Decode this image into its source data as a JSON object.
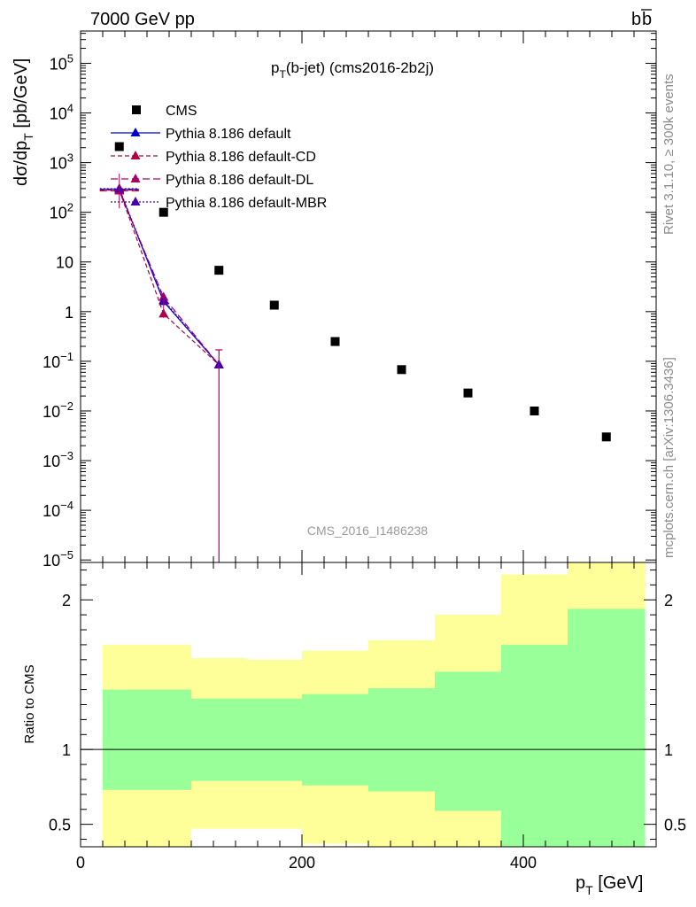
{
  "header": {
    "energy": "7000 GeV pp",
    "process_b": "b",
    "process_bbar": "b"
  },
  "side": {
    "rivet": "Rivet 3.1.10, ≥ 300k events",
    "arxiv": "mcplots.cern.ch [arXiv:1306.3436]"
  },
  "colors": {
    "cms": "#000000",
    "default": "#0000cc",
    "cd": "#b00044",
    "dl": "#aa0066",
    "mbr": "#4400aa",
    "band_inner": "#99ff99",
    "band_outer": "#ffff99"
  },
  "chart_data": [
    {
      "type": "scatter",
      "title": "p_T(b-jet) (cms2016-2b2j)",
      "title_main": "p",
      "title_sub": "T",
      "title_rest": "(b-jet) (cms2016-2b2j)",
      "watermark": "CMS_2016_I1486238",
      "ylabel": "dσ/dp_T [pb/GeV]",
      "ylabel_parts": {
        "a": "dσ/dp",
        "sub": "T",
        "b": " [pb/GeV]"
      },
      "yscale": "log",
      "ylim_log10": [
        -5.05,
        5.65
      ],
      "xlim": [
        0,
        520
      ],
      "y_ticks": [
        {
          "exp": 5,
          "base": "10",
          "sup": "5"
        },
        {
          "exp": 4,
          "base": "10",
          "sup": "4"
        },
        {
          "exp": 3,
          "base": "10",
          "sup": "3"
        },
        {
          "exp": 2,
          "base": "10",
          "sup": "2"
        },
        {
          "exp": 1,
          "base": "10",
          "sup": ""
        },
        {
          "exp": 0,
          "base": "1",
          "sup": ""
        },
        {
          "exp": -1,
          "base": "10",
          "sup": "−1"
        },
        {
          "exp": -2,
          "base": "10",
          "sup": "−2"
        },
        {
          "exp": -3,
          "base": "10",
          "sup": "−3"
        },
        {
          "exp": -4,
          "base": "10",
          "sup": "−4"
        },
        {
          "exp": -5,
          "base": "10",
          "sup": "−5"
        }
      ],
      "legend": [
        {
          "label": "CMS",
          "style": "square",
          "color_key": "cms",
          "dash": ""
        },
        {
          "label": "Pythia 8.186 default",
          "style": "line",
          "color_key": "default",
          "dash": ""
        },
        {
          "label": "Pythia 8.186 default-CD",
          "style": "line",
          "color_key": "cd",
          "dash": "5,3"
        },
        {
          "label": "Pythia 8.186 default-DL",
          "style": "line",
          "color_key": "dl",
          "dash": "8,4"
        },
        {
          "label": "Pythia 8.186 default-MBR",
          "style": "line",
          "color_key": "mbr",
          "dash": "2,2"
        }
      ],
      "cms": {
        "x": [
          35,
          75,
          125,
          175,
          230,
          290,
          350,
          410,
          475
        ],
        "y": [
          2100,
          100,
          6.8,
          1.35,
          0.25,
          0.068,
          0.023,
          0.01,
          0.003
        ]
      },
      "series": [
        {
          "name": "Pythia 8.186 default",
          "color_key": "default",
          "dash": "",
          "x": [
            35,
            75,
            125
          ],
          "y": [
            290,
            1.6,
            0.085
          ]
        },
        {
          "name": "Pythia 8.186 default-CD",
          "color_key": "cd",
          "dash": "5,3",
          "x": [
            35,
            75,
            125
          ],
          "y": [
            280,
            0.9,
            0.085
          ]
        },
        {
          "name": "Pythia 8.186 default-DL",
          "color_key": "dl",
          "dash": "8,4",
          "x": [
            35,
            75,
            125
          ],
          "y": [
            270,
            1.95,
            0.085
          ]
        },
        {
          "name": "Pythia 8.186 default-MBR",
          "color_key": "mbr",
          "dash": "2,2",
          "x": [
            35,
            75,
            125
          ],
          "y": [
            300,
            1.7,
            0.085
          ]
        }
      ]
    },
    {
      "type": "area",
      "ylabel": "Ratio to CMS",
      "xlabel": "p_T [GeV]",
      "xlabel_parts": {
        "a": "p",
        "sub": "T",
        "b": " [GeV]"
      },
      "xlim": [
        0,
        520
      ],
      "ylim": [
        0.35,
        2.25
      ],
      "x_ticks": [
        0,
        200,
        400
      ],
      "y_ticks": [
        {
          "value": 0.5,
          "label": "0.5"
        },
        {
          "value": 1,
          "label": "1"
        },
        {
          "value": 2,
          "label": "2"
        }
      ],
      "bins": [
        {
          "lo": 20,
          "hi": 100,
          "inner": [
            0.73,
            1.4
          ],
          "outer": [
            0.35,
            1.7
          ]
        },
        {
          "lo": 100,
          "hi": 150,
          "inner": [
            0.79,
            1.34
          ],
          "outer": [
            0.47,
            1.61
          ]
        },
        {
          "lo": 150,
          "hi": 200,
          "inner": [
            0.79,
            1.34
          ],
          "outer": [
            0.47,
            1.6
          ]
        },
        {
          "lo": 200,
          "hi": 260,
          "inner": [
            0.76,
            1.37
          ],
          "outer": [
            0.37,
            1.66
          ]
        },
        {
          "lo": 260,
          "hi": 320,
          "inner": [
            0.72,
            1.41
          ],
          "outer": [
            0.35,
            1.73
          ]
        },
        {
          "lo": 320,
          "hi": 380,
          "inner": [
            0.59,
            1.52
          ],
          "outer": [
            0.35,
            1.9
          ]
        },
        {
          "lo": 380,
          "hi": 440,
          "inner": [
            0.35,
            1.7
          ],
          "outer": [
            0.35,
            2.17
          ]
        },
        {
          "lo": 440,
          "hi": 510,
          "inner": [
            0.35,
            1.94
          ],
          "outer": [
            0.35,
            2.25
          ]
        }
      ]
    }
  ]
}
